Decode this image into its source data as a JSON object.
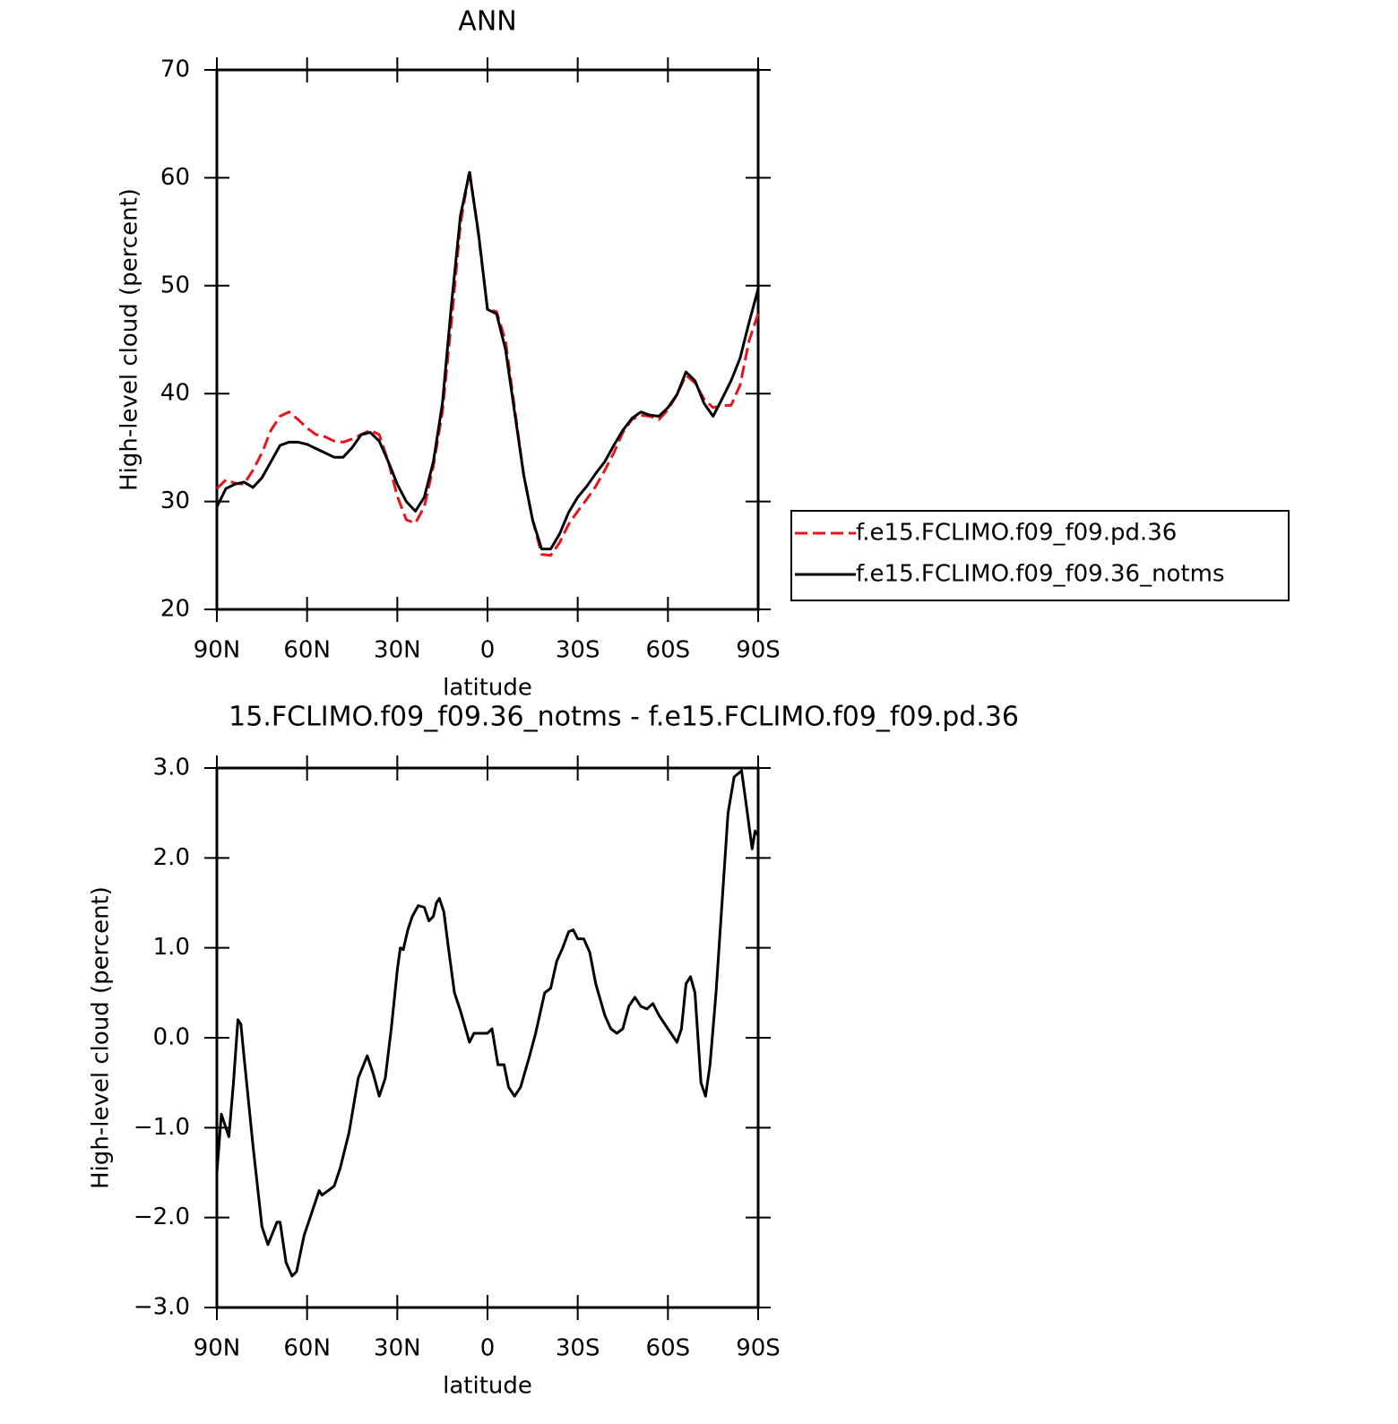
{
  "chart_data": [
    {
      "type": "line",
      "title": "ANN",
      "xlabel": "latitude",
      "ylabel": "High-level cloud (percent)",
      "x": [
        90,
        87,
        84,
        81,
        78,
        75,
        72,
        69,
        66,
        63,
        60,
        57,
        54,
        51,
        48,
        45,
        42,
        39,
        36,
        33,
        30,
        27,
        24,
        21,
        18,
        15,
        12,
        9,
        6,
        3,
        0,
        -3,
        -6,
        -9,
        -12,
        -15,
        -18,
        -21,
        -24,
        -27,
        -30,
        -33,
        -36,
        -39,
        -42,
        -45,
        -48,
        -51,
        -54,
        -57,
        -60,
        -63,
        -66,
        -69,
        -72,
        -75,
        -78,
        -81,
        -84,
        -87,
        -90
      ],
      "series": [
        {
          "name": "f.e15.FCLIMO.f09_f09.pd.36",
          "color": "#e8141c",
          "dash": "dashed",
          "values": [
            31.2,
            32.0,
            31.7,
            31.6,
            32.9,
            34.5,
            36.6,
            37.9,
            38.3,
            37.6,
            36.8,
            36.2,
            36.0,
            35.6,
            35.5,
            35.8,
            36.2,
            36.6,
            36.2,
            33.7,
            30.5,
            28.3,
            28.0,
            29.5,
            33.3,
            38.3,
            46.6,
            55.7,
            60.7,
            54.7,
            47.8,
            47.6,
            44.9,
            38.7,
            32.5,
            28.3,
            25.1,
            25.0,
            26.2,
            27.9,
            29.1,
            30.2,
            31.4,
            32.9,
            34.5,
            36.4,
            37.6,
            38.0,
            37.9,
            37.6,
            38.5,
            39.9,
            41.7,
            41.0,
            39.5,
            38.7,
            38.9,
            38.9,
            40.8,
            44.9,
            47.4
          ]
        },
        {
          "name": "f.e15.FCLIMO.f09_f09.36_notms",
          "color": "#000000",
          "dash": "solid",
          "values": [
            29.5,
            31.2,
            31.6,
            31.8,
            31.3,
            32.2,
            33.7,
            35.2,
            35.5,
            35.5,
            35.3,
            34.9,
            34.5,
            34.1,
            34.1,
            35.0,
            36.2,
            36.4,
            35.6,
            33.7,
            31.6,
            30.0,
            29.1,
            30.4,
            33.7,
            39.1,
            48.2,
            56.5,
            60.5,
            54.9,
            47.8,
            47.4,
            44.1,
            38.3,
            32.5,
            28.3,
            25.6,
            25.6,
            27.0,
            29.0,
            30.4,
            31.4,
            32.6,
            33.7,
            35.2,
            36.6,
            37.7,
            38.3,
            38.0,
            37.9,
            38.7,
            39.9,
            42.0,
            41.2,
            39.1,
            37.9,
            39.5,
            41.2,
            43.3,
            46.6,
            49.7
          ]
        }
      ],
      "xlim": [
        90,
        -90
      ],
      "xticks": [
        {
          "value": 90,
          "label": "90N"
        },
        {
          "value": 60,
          "label": "60N"
        },
        {
          "value": 30,
          "label": "30N"
        },
        0,
        {
          "value": -30,
          "label": "30S"
        },
        {
          "value": -60,
          "label": "60S"
        },
        {
          "value": -90,
          "label": "90S"
        }
      ],
      "ylim": [
        20,
        70
      ],
      "yticks": [
        20,
        30,
        40,
        50,
        60,
        70
      ],
      "legend": "right"
    },
    {
      "type": "line",
      "title": "15.FCLIMO.f09_f09.36_notms - f.e15.FCLIMO.f09_f09.pd.36",
      "xlabel": "latitude",
      "ylabel": "High-level cloud (percent)",
      "x": [
        90,
        88.5,
        86,
        84.5,
        83,
        82,
        81,
        78,
        75,
        73,
        70,
        69,
        67,
        65,
        63.5,
        61,
        58,
        56,
        55,
        53,
        51,
        49,
        46,
        43,
        40,
        38,
        36,
        34,
        32,
        30,
        29,
        28,
        26.5,
        25,
        23,
        21,
        19.5,
        18,
        17,
        16,
        14.5,
        13,
        11,
        9,
        6,
        4.5,
        3,
        0,
        -1.5,
        -3.5,
        -5.5,
        -7,
        -9,
        -11,
        -14,
        -16,
        -19,
        -21,
        -23,
        -25,
        -27,
        -28.5,
        -30,
        -32,
        -34,
        -36,
        -39,
        -41,
        -43,
        -45,
        -47,
        -49,
        -51,
        -53,
        -55,
        -57,
        -59,
        -61,
        -63,
        -64.5,
        -66,
        -67.5,
        -69,
        -71,
        -72.5,
        -74,
        -76,
        -78,
        -80,
        -82,
        -84.5,
        -86,
        -88,
        -89,
        -90
      ],
      "color": "#000000",
      "values": [
        -1.5,
        -0.85,
        -1.1,
        -0.5,
        0.2,
        0.15,
        -0.2,
        -1.2,
        -2.1,
        -2.3,
        -2.05,
        -2.05,
        -2.5,
        -2.65,
        -2.6,
        -2.2,
        -1.9,
        -1.7,
        -1.75,
        -1.7,
        -1.65,
        -1.45,
        -1.05,
        -0.45,
        -0.2,
        -0.4,
        -0.65,
        -0.45,
        0.1,
        0.75,
        1.0,
        0.98,
        1.2,
        1.35,
        1.47,
        1.45,
        1.3,
        1.35,
        1.5,
        1.55,
        1.4,
        1.0,
        0.5,
        0.3,
        -0.05,
        0.05,
        0.05,
        0.05,
        0.1,
        -0.3,
        -0.3,
        -0.55,
        -0.65,
        -0.55,
        -0.2,
        0.05,
        0.5,
        0.55,
        0.85,
        1.0,
        1.18,
        1.2,
        1.1,
        1.1,
        0.95,
        0.6,
        0.25,
        0.1,
        0.05,
        0.1,
        0.35,
        0.45,
        0.35,
        0.32,
        0.38,
        0.25,
        0.15,
        0.05,
        -0.05,
        0.1,
        0.6,
        0.68,
        0.5,
        -0.5,
        -0.65,
        -0.3,
        0.5,
        1.5,
        2.5,
        2.9,
        2.97,
        2.6,
        2.1,
        2.3,
        2.25
      ],
      "xlim": [
        90,
        -90
      ],
      "xticks": [
        {
          "value": 90,
          "label": "90N"
        },
        {
          "value": 60,
          "label": "60N"
        },
        {
          "value": 30,
          "label": "30N"
        },
        0,
        {
          "value": -30,
          "label": "30S"
        },
        {
          "value": -60,
          "label": "60S"
        },
        {
          "value": -90,
          "label": "90S"
        }
      ],
      "ylim": [
        -3,
        3
      ],
      "yticks": [
        {
          "value": -3,
          "label": "−3.0"
        },
        {
          "value": -2,
          "label": "−2.0"
        },
        {
          "value": -1,
          "label": "−1.0"
        },
        {
          "value": 0,
          "label": "0.0"
        },
        {
          "value": 1,
          "label": "1.0"
        },
        {
          "value": 2,
          "label": "2.0"
        },
        {
          "value": 3,
          "label": "3.0"
        }
      ]
    }
  ]
}
